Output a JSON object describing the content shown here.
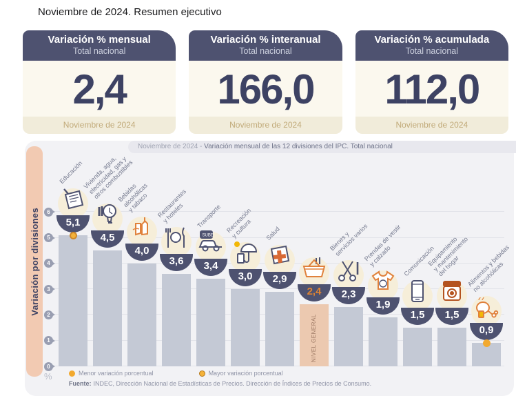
{
  "page": {
    "title": "Noviembre de 2024. Resumen ejecutivo"
  },
  "cards": [
    {
      "title": "Variación % mensual",
      "subtitle": "Total nacional",
      "value": "2,4",
      "period": "Noviembre de 2024"
    },
    {
      "title": "Variación % interanual",
      "subtitle": "Total nacional",
      "value": "166,0",
      "period": "Noviembre de 2024"
    },
    {
      "title": "Variación % acumulada",
      "subtitle": "Total nacional",
      "value": "112,0",
      "period": "Noviembre de 2024"
    }
  ],
  "chart": {
    "title_prefix": "Noviembre de 2024 - ",
    "title_main": "Variación mensual de las 12 divisiones del IPC. Total nacional",
    "axis_label": "Variación por divisiones",
    "unit_label": "%",
    "legend": [
      {
        "label": "Menor variación porcentual",
        "marker": "menor"
      },
      {
        "label": "Mayor variación porcentual",
        "marker": "mayor"
      }
    ],
    "source_bold": "Fuente:",
    "source_text": "INDEC, Dirección Nacional de Estadísticas de Precios. Dirección de Índices de Precios de Consumo."
  },
  "chart_data": {
    "type": "bar",
    "title": "Noviembre de 2024 - Variación mensual de las 12 divisiones del IPC. Total nacional",
    "ylabel": "Variación por divisiones",
    "y_unit": "%",
    "ylim": [
      0,
      6
    ],
    "yticks": [
      0,
      1,
      2,
      3,
      4,
      5,
      6
    ],
    "grid": true,
    "highlight_color": "#ecc9b0",
    "bar_color": "#c4c9d5",
    "categories": [
      "Educación",
      "Vivienda, agua, electricidad, gas y otros combustibles",
      "Bebidas alcohólicas y tabaco",
      "Restaurantes y hoteles",
      "Transporte",
      "Recreación y cultura",
      "Salud",
      "NIVEL GENERAL",
      "Bienes y servicios varios",
      "Prendas de vestir y calzado",
      "Comunicación",
      "Equipamiento y mantenimiento del hogar",
      "Alimentos y bebidas no alcohólicas"
    ],
    "values": [
      5.1,
      4.5,
      4.0,
      3.6,
      3.4,
      3.0,
      2.9,
      2.4,
      2.3,
      1.9,
      1.5,
      1.5,
      0.9
    ],
    "divisions": [
      {
        "label": "Educación",
        "label_lines": "Educación",
        "value": "5,1",
        "num": 5.1,
        "icon": "notebook-icon",
        "marker": "mayor"
      },
      {
        "label": "Vivienda, agua, electricidad, gas y otros combustibles",
        "label_lines": "Vivienda, agua,\nelectricidad, gas y\notros combustibles",
        "value": "4,5",
        "num": 4.5,
        "icon": "lightbulb-icon"
      },
      {
        "label": "Bebidas alcohólicas y tabaco",
        "label_lines": "Bebidas\nalcohólicas\ny tabaco",
        "value": "4,0",
        "num": 4.0,
        "icon": "bottles-icon"
      },
      {
        "label": "Restaurantes y hoteles",
        "label_lines": "Restaurantes\ny hoteles",
        "value": "3,6",
        "num": 3.6,
        "icon": "cutlery-icon"
      },
      {
        "label": "Transporte",
        "label_lines": "Transporte",
        "value": "3,4",
        "num": 3.4,
        "icon": "car-sube-icon"
      },
      {
        "label": "Recreación y cultura",
        "label_lines": "Recreación\ny cultura",
        "value": "3,0",
        "num": 3.0,
        "icon": "umbrella-sun-icon"
      },
      {
        "label": "Salud",
        "label_lines": "Salud",
        "value": "2,9",
        "num": 2.9,
        "icon": "medical-cross-icon"
      },
      {
        "label": "NIVEL GENERAL",
        "label_lines": "",
        "value": "2,4",
        "num": 2.4,
        "icon": "basket-icon",
        "highlight": true,
        "bar_text": "NIVEL GENERAL"
      },
      {
        "label": "Bienes y servicios varios",
        "label_lines": "Bienes y\nservicios varios",
        "value": "2,3",
        "num": 2.3,
        "icon": "scissors-icon"
      },
      {
        "label": "Prendas de vestir y calzado",
        "label_lines": "Prendas de vestir\ny calzado",
        "value": "1,9",
        "num": 1.9,
        "icon": "tshirt-icon"
      },
      {
        "label": "Comunicación",
        "label_lines": "Comunicación",
        "value": "1,5",
        "num": 1.5,
        "icon": "phone-icon"
      },
      {
        "label": "Equipamiento y mantenimiento del hogar",
        "label_lines": "Equipamiento\ny mantenimiento\ndel hogar",
        "value": "1,5",
        "num": 1.5,
        "icon": "washer-icon"
      },
      {
        "label": "Alimentos y bebidas no alcohólicas",
        "label_lines": "Alimentos y bebidas\nno alcohólicas",
        "value": "0,9",
        "num": 0.9,
        "icon": "food-icon",
        "marker": "menor"
      }
    ]
  }
}
